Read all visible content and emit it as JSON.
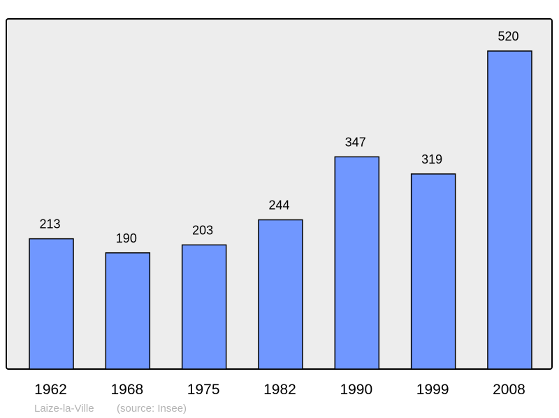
{
  "chart_data": {
    "type": "bar",
    "categories": [
      "1962",
      "1968",
      "1975",
      "1982",
      "1990",
      "1999",
      "2008"
    ],
    "values": [
      213,
      190,
      203,
      244,
      347,
      319,
      520
    ],
    "title": "",
    "xlabel": "",
    "ylabel": "",
    "grid": false,
    "data_labels": true,
    "colors": {
      "bar": "#7097ff",
      "plot_background": "#ededed",
      "border": "#000000",
      "caption": "#b3b3b3"
    }
  },
  "caption": {
    "place": "Laize-la-Ville",
    "source": "(source: Insee)"
  }
}
